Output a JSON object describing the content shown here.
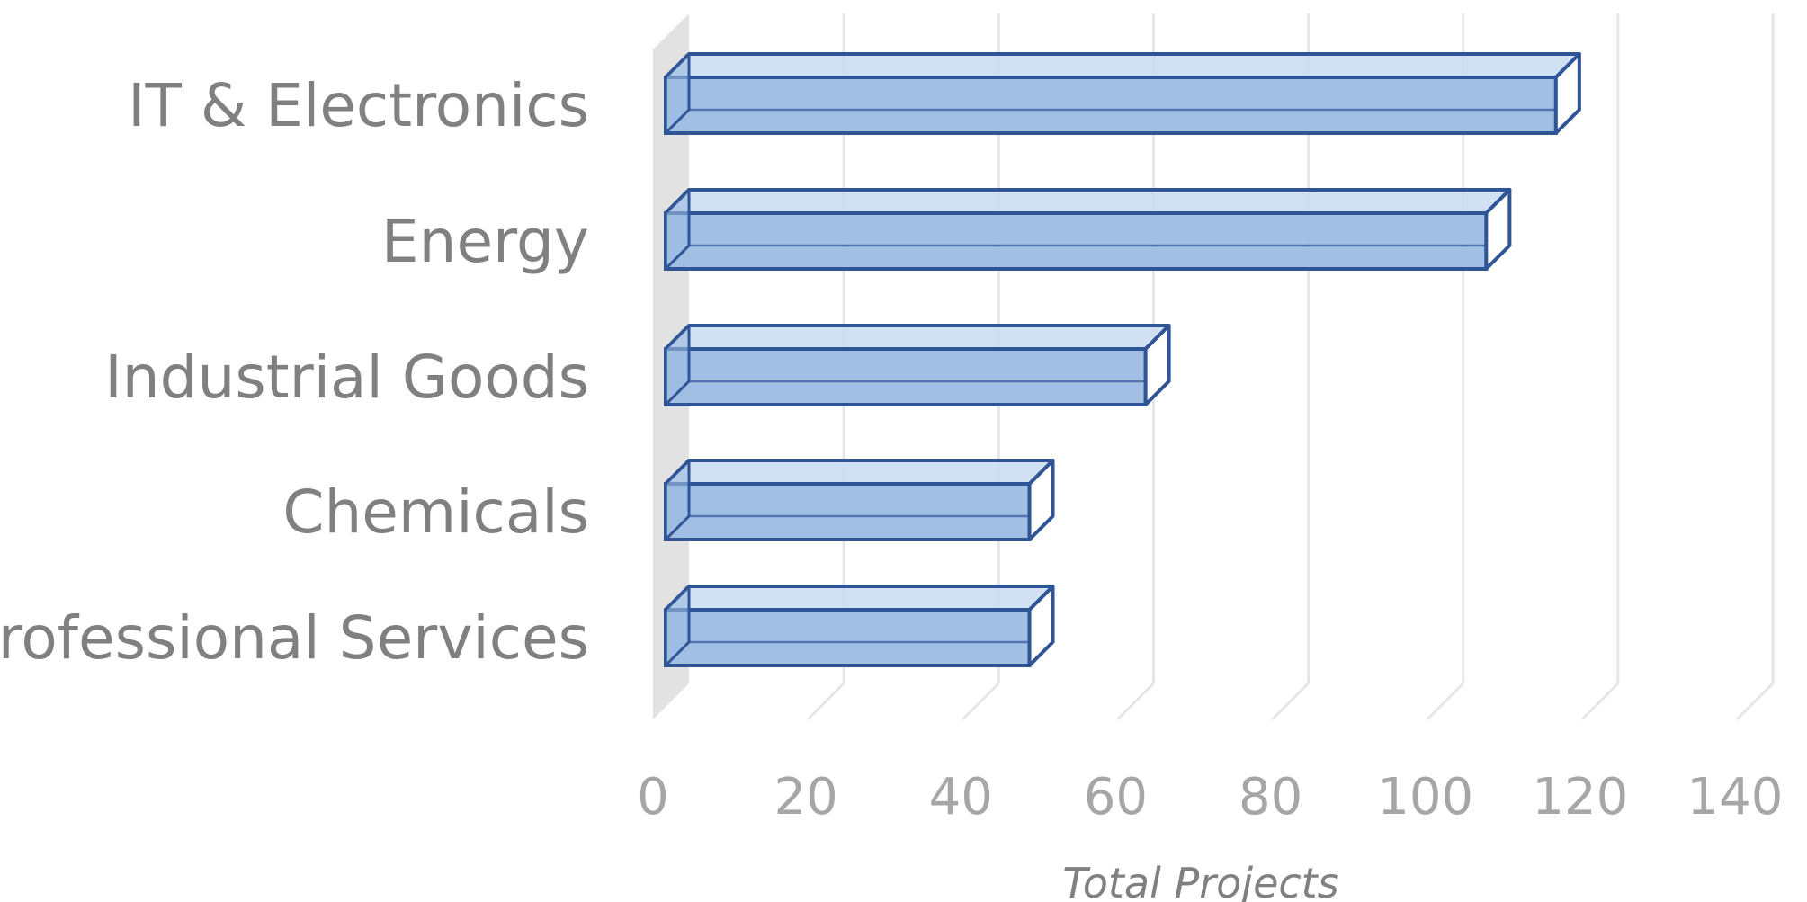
{
  "chart_data": {
    "type": "bar",
    "orientation": "horizontal",
    "style": "3d",
    "categories": [
      "IT & Electronics",
      "Energy",
      "Industrial Goods",
      "Chemicals",
      "Professional Services"
    ],
    "values": [
      115,
      106,
      62,
      47,
      47
    ],
    "xlabel": "Total Projects",
    "ylabel": "",
    "xlim": [
      0,
      140
    ],
    "xticks": [
      "0",
      "20",
      "40",
      "60",
      "80",
      "100",
      "120",
      "140"
    ],
    "grid": true,
    "legend": "none",
    "colors": {
      "bar_fill": "#9dbde3",
      "bar_edge": "#2f5597",
      "grid": "#e6e6e6",
      "wall": "#e2e2e2",
      "category_text": "#808080",
      "tick_text": "#a6a6a6"
    }
  }
}
